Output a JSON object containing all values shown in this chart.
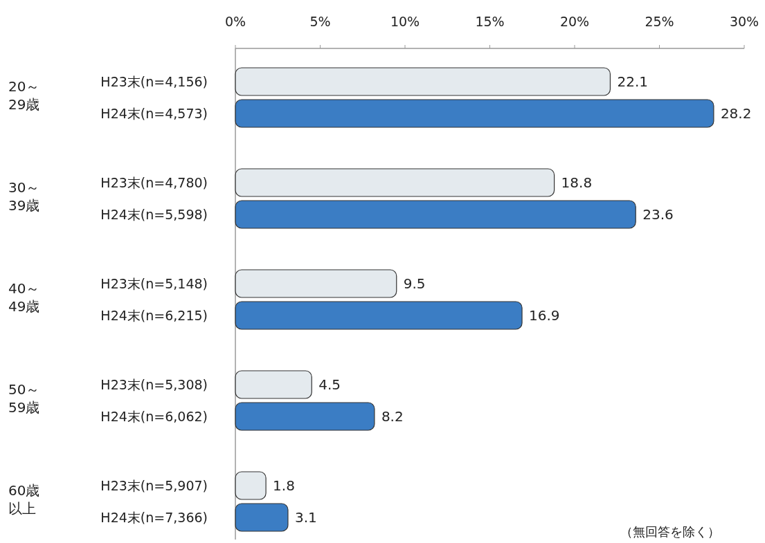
{
  "chart_data": {
    "type": "bar",
    "orientation": "horizontal",
    "categories": [
      "H23末(n=4,156)",
      "H24末(n=4,573)",
      "H23末(n=4,780)",
      "H24末(n=5,598)",
      "H23末(n=5,148)",
      "H24末(n=6,215)",
      "H23末(n=5,308)",
      "H24末(n=6,062)",
      "H23末(n=5,907)",
      "H24末(n=7,366)"
    ],
    "values": [
      22.1,
      28.2,
      18.8,
      23.6,
      9.5,
      16.9,
      4.5,
      8.2,
      1.8,
      3.1
    ],
    "colors": [
      "#e4eaee",
      "#3b7dc4",
      "#e4eaee",
      "#3b7dc4",
      "#e4eaee",
      "#3b7dc4",
      "#e4eaee",
      "#3b7dc4",
      "#e4eaee",
      "#3b7dc4"
    ],
    "xlim": [
      0,
      30
    ],
    "xticks": [
      {
        "value": 0,
        "label": "0%"
      },
      {
        "value": 5,
        "label": "5%"
      },
      {
        "value": 10,
        "label": "10%"
      },
      {
        "value": 15,
        "label": "15%"
      },
      {
        "value": 20,
        "label": "20%"
      },
      {
        "value": 25,
        "label": "25%"
      },
      {
        "value": 30,
        "label": "30%"
      }
    ],
    "data_labels": true,
    "grid": false,
    "annotations": [
      "20～29歳",
      "30～39歳",
      "40～49歳",
      "50～59歳",
      "60歳以上",
      "（無回答を除く）"
    ]
  }
}
